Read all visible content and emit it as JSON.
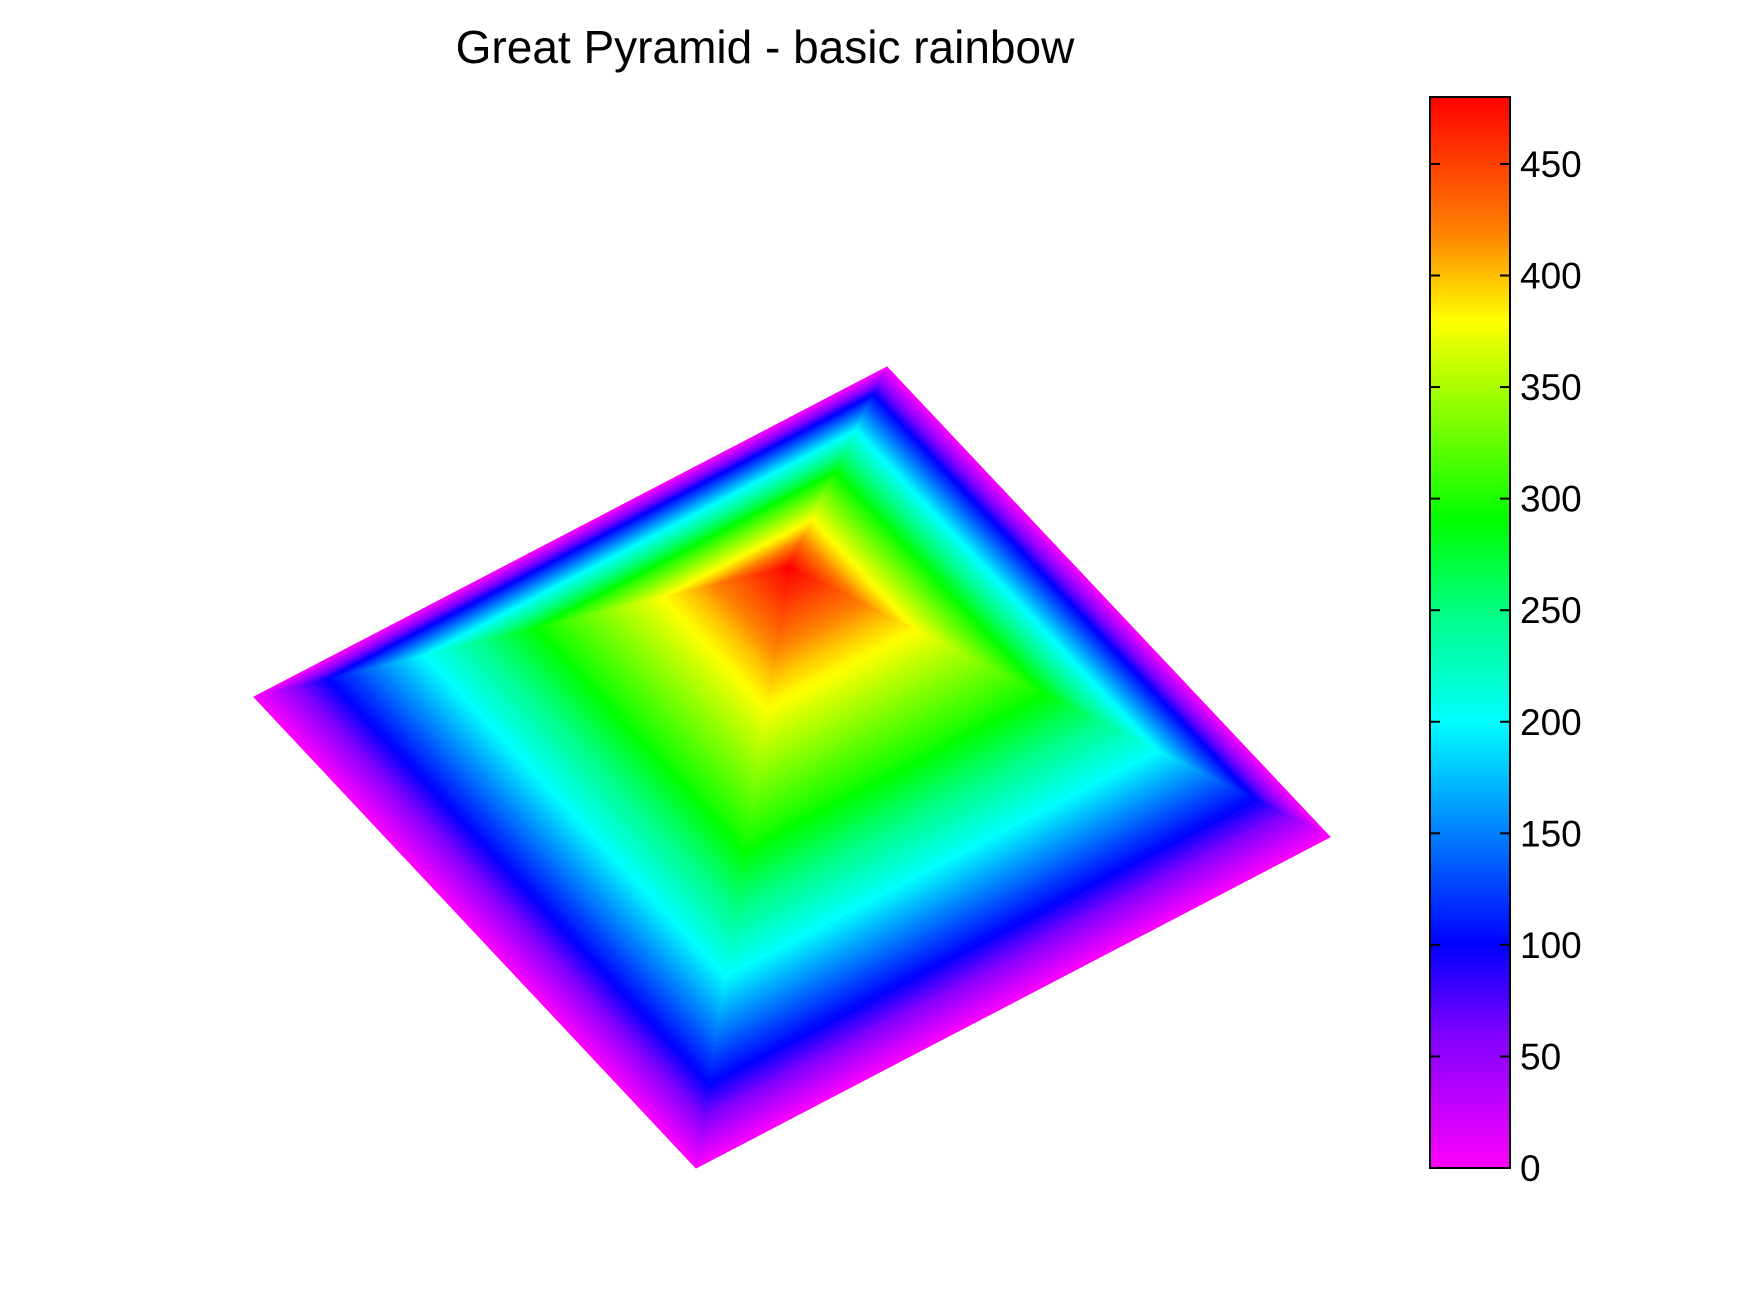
{
  "chart_data": {
    "type": "heatmap",
    "title": "Great Pyramid - basic rainbow",
    "subtype": "3d-surface-top-view",
    "colormap": "rainbow",
    "surface": {
      "shape": "square pyramid",
      "base_elevation": 0,
      "peak_elevation": 480,
      "terraces": [
        {
          "elevation": 480,
          "relative_size": 0.0
        },
        {
          "elevation": 400,
          "relative_size": 0.18
        },
        {
          "elevation": 300,
          "relative_size": 0.45
        },
        {
          "elevation": 200,
          "relative_size": 0.68
        },
        {
          "elevation": 100,
          "relative_size": 0.86
        },
        {
          "elevation": 0,
          "relative_size": 1.0
        }
      ]
    },
    "colorbar": {
      "range": [
        0,
        480
      ],
      "ticks": [
        0,
        50,
        100,
        150,
        200,
        250,
        300,
        350,
        400,
        450
      ],
      "tick_labels": [
        "0",
        "50",
        "100",
        "150",
        "200",
        "250",
        "300",
        "350",
        "400",
        "450"
      ],
      "stops": [
        {
          "value": 0,
          "color": "#ff00ff"
        },
        {
          "value": 60,
          "color": "#8000ff"
        },
        {
          "value": 100,
          "color": "#0000ff"
        },
        {
          "value": 200,
          "color": "#00ffff"
        },
        {
          "value": 250,
          "color": "#00ff80"
        },
        {
          "value": 290,
          "color": "#00ff00"
        },
        {
          "value": 380,
          "color": "#ffff00"
        },
        {
          "value": 420,
          "color": "#ff8000"
        },
        {
          "value": 480,
          "color": "#ff0000"
        }
      ]
    }
  }
}
